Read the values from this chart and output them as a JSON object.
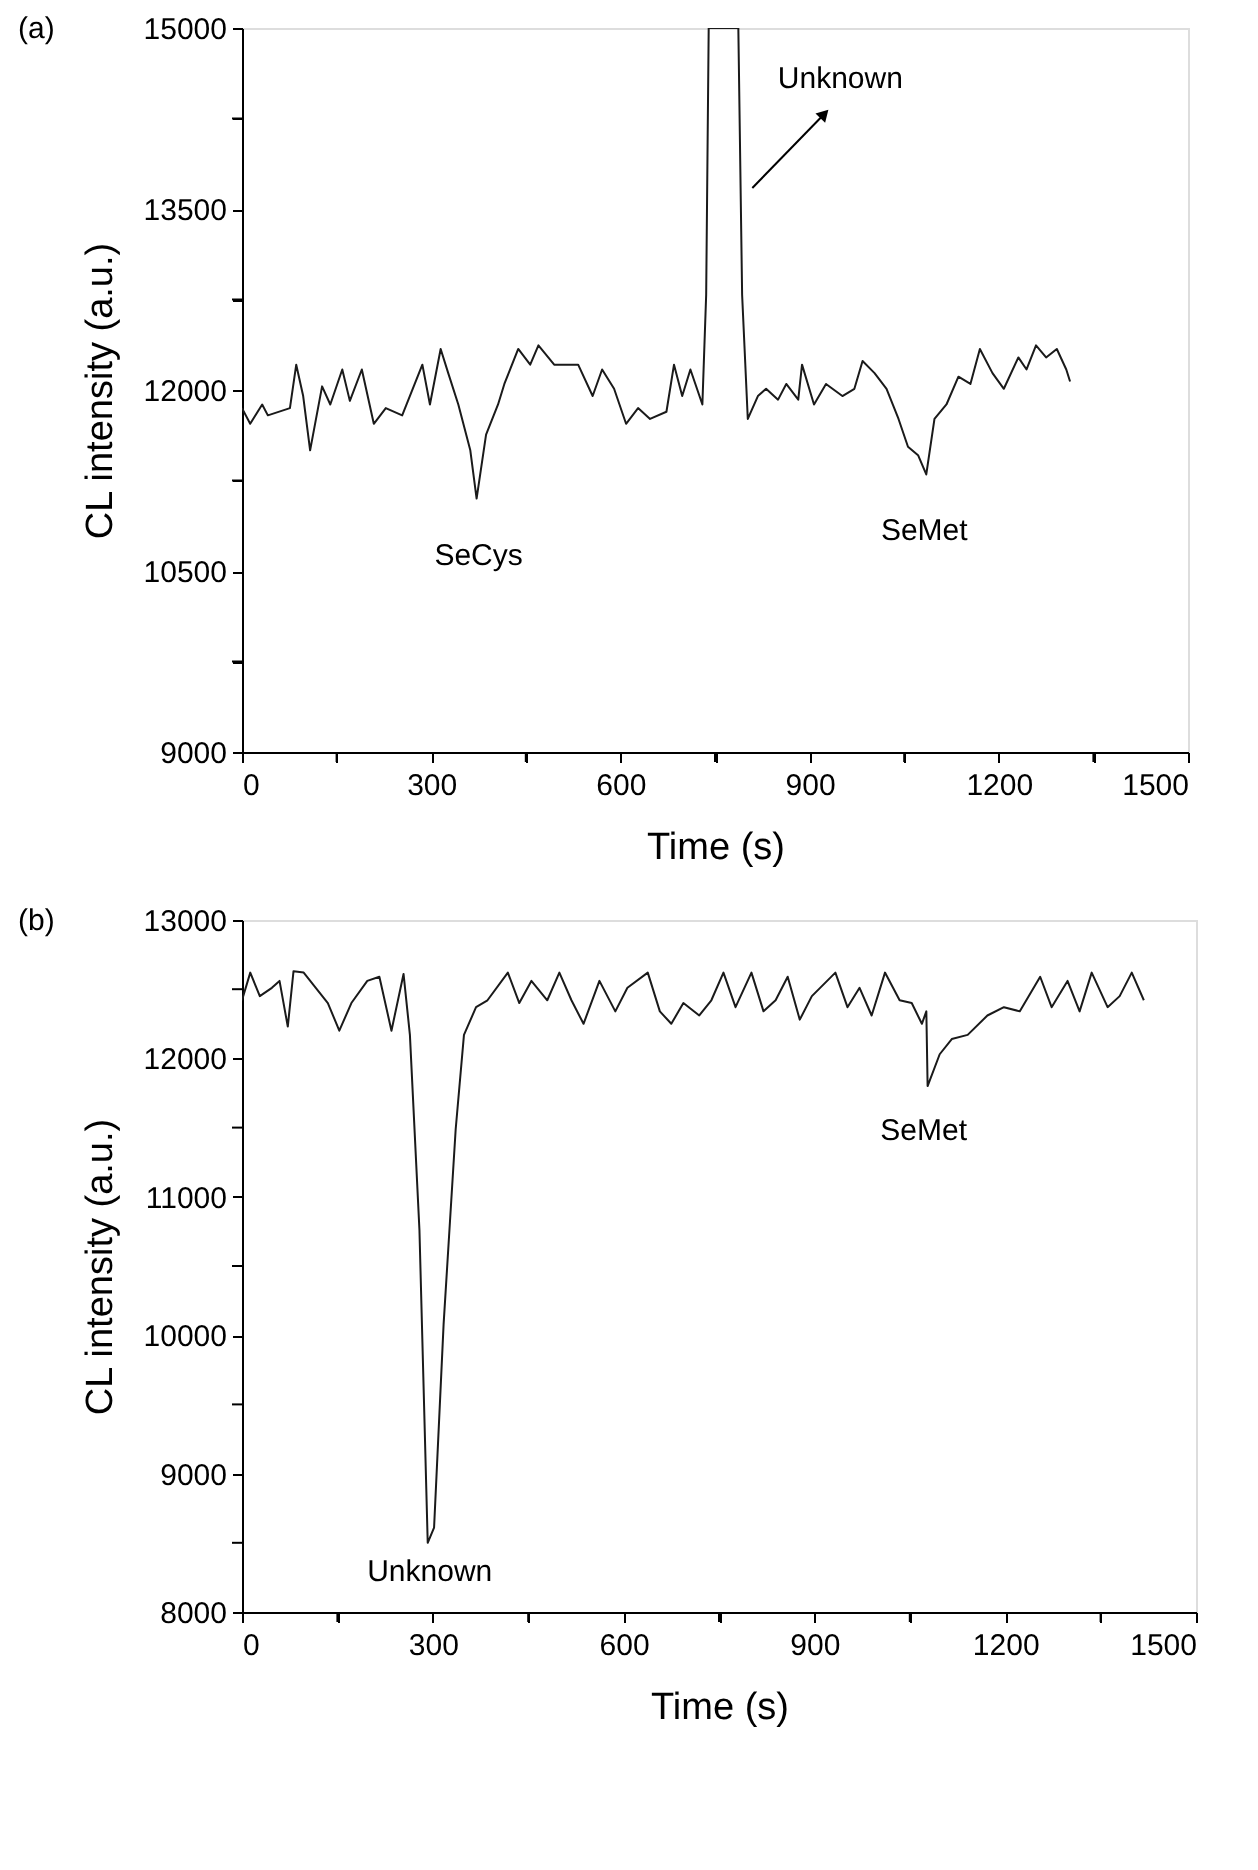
{
  "chart_data": [
    {
      "type": "line",
      "xlabel": "Time (s)",
      "ylabel": "CL intensity (a.u.)",
      "xlim": [
        0,
        1500
      ],
      "ylim": [
        9000,
        15000
      ],
      "xticks": [
        0,
        {
          "value": 150,
          "label": null
        },
        300,
        {
          "value": 450,
          "label": null
        },
        600,
        {
          "value": 750,
          "label": null
        },
        900,
        {
          "value": 1050,
          "label": null
        },
        1200,
        {
          "value": 1350,
          "label": null
        },
        1500
      ],
      "yticks": [
        9000,
        {
          "value": 9750,
          "label": null
        },
        10500,
        {
          "value": 11250,
          "label": null
        },
        12000,
        {
          "value": 12750,
          "label": null
        },
        13500,
        {
          "value": 14250,
          "label": null
        },
        15000
      ],
      "grid": false,
      "marker": "none",
      "line_style": "solid",
      "series": [
        {
          "color": "#1a1a1a",
          "x": [
            0,
            13,
            32,
            41,
            76,
            86,
            97,
            108,
            127,
            140,
            159,
            171,
            190,
            209,
            228,
            254,
            286,
            298,
            315,
            327,
            343,
            362,
            372,
            387,
            406,
            416,
            438,
            457,
            470,
            495,
            533,
            556,
            571,
            590,
            609,
            628,
            647,
            673,
            685,
            698,
            711,
            730,
            736,
            740,
            787,
            793,
            802,
            818,
            831,
            850,
            863,
            882,
            888,
            907,
            926,
            952,
            971,
            984,
            1003,
            1022,
            1041,
            1056,
            1072,
            1085,
            1098,
            1117,
            1136,
            1155,
            1170,
            1190,
            1208,
            1231,
            1244,
            1259,
            1275,
            1292,
            1307,
            1313
          ],
          "values": [
            11850,
            11720,
            11880,
            11790,
            11850,
            12210,
            11950,
            11500,
            12030,
            11880,
            12170,
            11910,
            12170,
            11720,
            11850,
            11790,
            12210,
            11880,
            12340,
            12140,
            11880,
            11500,
            11100,
            11630,
            11880,
            12050,
            12340,
            12210,
            12370,
            12210,
            12210,
            11950,
            12170,
            12010,
            11720,
            11850,
            11760,
            11820,
            12210,
            11950,
            12170,
            11880,
            12790,
            15000,
            15000,
            12790,
            11760,
            11950,
            12010,
            11920,
            12050,
            11920,
            12210,
            11880,
            12050,
            11950,
            12010,
            12240,
            12140,
            12010,
            11760,
            11530,
            11460,
            11300,
            11760,
            11880,
            12110,
            12050,
            12340,
            12140,
            12010,
            12270,
            12170,
            12370,
            12270,
            12340,
            12170,
            12070
          ]
        }
      ],
      "annotations": [
        "(a)",
        {
          "text": "Unknown",
          "x": 787,
          "y": 15000
        },
        {
          "text": "SeCys",
          "x": 372,
          "y": 11100
        },
        {
          "text": "SeMet",
          "x": 1085,
          "y": 11300
        }
      ]
    },
    {
      "type": "line",
      "xlabel": "Time (s)",
      "ylabel": "CL intensity (a.u.)",
      "xlim": [
        0,
        1500
      ],
      "ylim": [
        8000,
        13000
      ],
      "xticks": [
        0,
        {
          "value": 150,
          "label": null
        },
        300,
        {
          "value": 450,
          "label": null
        },
        600,
        {
          "value": 750,
          "label": null
        },
        900,
        {
          "value": 1050,
          "label": null
        },
        1200,
        {
          "value": 1350,
          "label": null
        },
        1500
      ],
      "yticks": [
        8000,
        {
          "value": 8500,
          "label": null
        },
        9000,
        {
          "value": 9500,
          "label": null
        },
        10000,
        {
          "value": 10500,
          "label": null
        },
        11000,
        {
          "value": 11500,
          "label": null
        },
        12000,
        {
          "value": 12500,
          "label": null
        },
        13000
      ],
      "grid": false,
      "marker": "none",
      "line_style": "solid",
      "series": [
        {
          "color": "#1a1a1a",
          "x": [
            0,
            13,
            28,
            47,
            59,
            72,
            81,
            97,
            116,
            135,
            153,
            172,
            197,
            216,
            235,
            254,
            264,
            279,
            292,
            302,
            317,
            336,
            349,
            368,
            386,
            418,
            436,
            455,
            480,
            499,
            518,
            537,
            562,
            587,
            606,
            638,
            657,
            675,
            694,
            719,
            738,
            757,
            776,
            801,
            820,
            839,
            858,
            877,
            896,
            933,
            952,
            971,
            990,
            1011,
            1034,
            1053,
            1069,
            1076,
            1078,
            1097,
            1116,
            1141,
            1172,
            1198,
            1223,
            1255,
            1273,
            1298,
            1317,
            1336,
            1361,
            1380,
            1399,
            1418
          ],
          "values": [
            12420,
            12620,
            12450,
            12510,
            12560,
            12230,
            12630,
            12620,
            12510,
            12400,
            12200,
            12400,
            12560,
            12590,
            12200,
            12610,
            12170,
            10760,
            8500,
            8610,
            10080,
            11490,
            12170,
            12370,
            12420,
            12620,
            12400,
            12560,
            12420,
            12620,
            12420,
            12250,
            12560,
            12340,
            12510,
            12620,
            12340,
            12250,
            12400,
            12310,
            12420,
            12620,
            12370,
            12620,
            12340,
            12420,
            12590,
            12280,
            12450,
            12620,
            12370,
            12510,
            12310,
            12620,
            12420,
            12400,
            12250,
            12340,
            11800,
            12030,
            12140,
            12170,
            12310,
            12370,
            12340,
            12590,
            12370,
            12560,
            12340,
            12620,
            12370,
            12450,
            12620,
            12420
          ]
        }
      ],
      "annotations": [
        "(b)",
        {
          "text": "Unknown",
          "x": 292,
          "y": 8500
        },
        {
          "text": "SeMet",
          "x": 1078,
          "y": 11800
        }
      ]
    }
  ]
}
